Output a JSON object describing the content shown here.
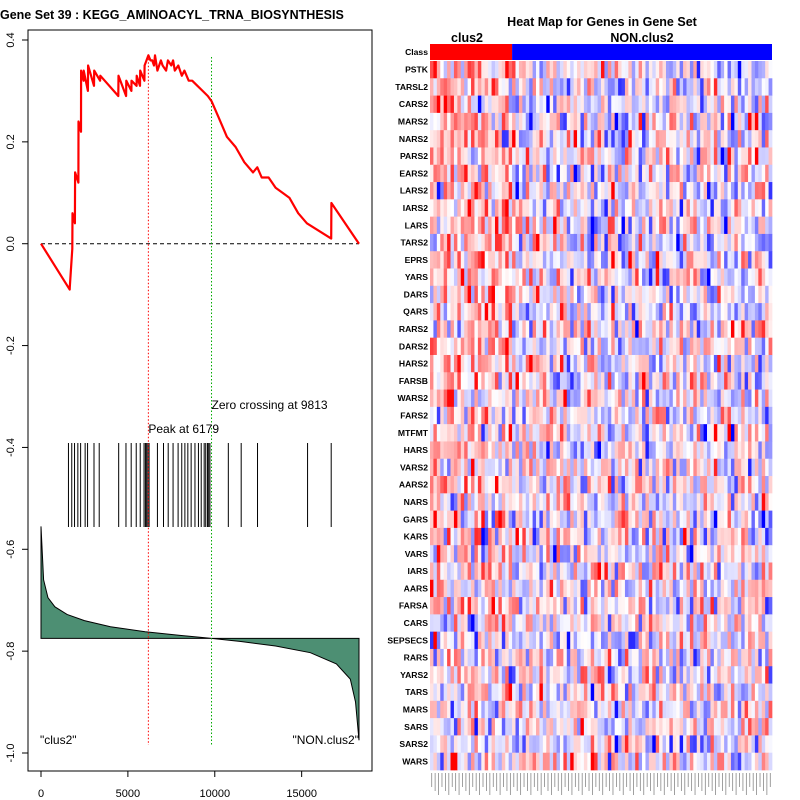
{
  "left_title": "Gene Set  39 : KEGG_AMINOACYL_TRNA_BIOSYNTHESIS",
  "right_title": "Heat Map for Genes in Gene Set",
  "class_label": "Class",
  "group1": "clus2",
  "group2": "NON.clus2",
  "peak_label": "Peak at 6179",
  "zero_label": "Zero crossing at 9813",
  "left_corner_label": "\"clus2\"",
  "right_corner_label": "\"NON.clus2\"",
  "colors": {
    "es_line": "#ff0000",
    "peak_line": "#ff0000",
    "zero_line": "#00aa00",
    "metric_fill": "#4d8f73",
    "group1": "#ff0000",
    "group2": "#0000ff"
  },
  "genes": [
    "PSTK",
    "TARSL2",
    "CARS2",
    "MARS2",
    "NARS2",
    "PARS2",
    "EARS2",
    "LARS2",
    "IARS2",
    "LARS",
    "TARS2",
    "EPRS",
    "YARS",
    "DARS",
    "QARS",
    "RARS2",
    "DARS2",
    "HARS2",
    "FARSB",
    "WARS2",
    "FARS2",
    "MTFMT",
    "HARS",
    "VARS2",
    "AARS2",
    "NARS",
    "GARS",
    "KARS",
    "VARS",
    "IARS",
    "AARS",
    "FARSA",
    "CARS",
    "SEPSECS",
    "RARS",
    "YARS2",
    "TARS",
    "MARS",
    "SARS",
    "SARS2",
    "WARS"
  ],
  "chart_data": [
    {
      "type": "line",
      "title": "Gene Set  39 : KEGG_AMINOACYL_TRNA_BIOSYNTHESIS",
      "xlabel": "",
      "ylabel": "",
      "xlim": [
        0,
        18300
      ],
      "ylim": [
        -1.0,
        0.4
      ],
      "xticks": [
        0,
        5000,
        10000,
        15000
      ],
      "yticks": [
        -1.0,
        -0.8,
        -0.6,
        -0.4,
        -0.2,
        0.0,
        0.2,
        0.4
      ],
      "peak": 6179,
      "zero_crossing": 9813,
      "running_es": {
        "x": [
          0,
          1650,
          1660,
          1800,
          1810,
          1950,
          1960,
          2150,
          2160,
          2300,
          2310,
          2450,
          2460,
          2700,
          2710,
          3050,
          3060,
          3400,
          3410,
          4450,
          4460,
          4900,
          4910,
          5200,
          5210,
          5500,
          5510,
          5700,
          5710,
          5950,
          5960,
          6179,
          6300,
          6400,
          6500,
          6560,
          6700,
          6900,
          7000,
          7200,
          7300,
          7500,
          7600,
          7700,
          7900,
          8100,
          8250,
          8500,
          8700,
          9000,
          9300,
          9600,
          9813,
          10200,
          10700,
          11200,
          11700,
          12200,
          12450,
          12700,
          13100,
          13500,
          13900,
          14300,
          14800,
          15300,
          16700,
          16710,
          18300
        ],
        "y": [
          0.0,
          -0.09,
          -0.085,
          -0.01,
          0.06,
          0.04,
          0.14,
          0.12,
          0.24,
          0.22,
          0.34,
          0.32,
          0.34,
          0.3,
          0.35,
          0.31,
          0.34,
          0.32,
          0.33,
          0.29,
          0.33,
          0.29,
          0.32,
          0.3,
          0.32,
          0.31,
          0.33,
          0.31,
          0.34,
          0.32,
          0.35,
          0.37,
          0.36,
          0.36,
          0.35,
          0.37,
          0.34,
          0.36,
          0.35,
          0.34,
          0.36,
          0.35,
          0.36,
          0.34,
          0.35,
          0.33,
          0.34,
          0.32,
          0.32,
          0.31,
          0.3,
          0.29,
          0.28,
          0.25,
          0.21,
          0.19,
          0.16,
          0.14,
          0.15,
          0.13,
          0.13,
          0.11,
          0.1,
          0.09,
          0.06,
          0.04,
          0.01,
          0.08,
          0.0
        ]
      },
      "hit_positions": [
        1580,
        1770,
        1930,
        2120,
        2280,
        2540,
        2680,
        3050,
        3350,
        4470,
        4890,
        5190,
        5480,
        5710,
        5930,
        6010,
        6080,
        6150,
        6220,
        6700,
        7050,
        7320,
        7600,
        7890,
        8100,
        8280,
        8450,
        8640,
        8860,
        9060,
        9220,
        9390,
        9480,
        9580,
        9650,
        9720,
        10780,
        11520,
        12460,
        15340,
        16700
      ],
      "ranked_metric": {
        "x": [
          0,
          150,
          400,
          800,
          1500,
          2500,
          4000,
          6000,
          8000,
          9813,
          11500,
          13500,
          15500,
          17000,
          17800,
          18100,
          18300
        ],
        "y": [
          -0.555,
          -0.66,
          -0.695,
          -0.713,
          -0.728,
          -0.74,
          -0.752,
          -0.762,
          -0.769,
          -0.775,
          -0.781,
          -0.79,
          -0.803,
          -0.825,
          -0.855,
          -0.9,
          -0.975
        ],
        "baseline": -0.775
      },
      "corner_labels": [
        "\"clus2\"",
        "\"NON.clus2\""
      ]
    },
    {
      "type": "heatmap",
      "title": "Heat Map for Genes in Gene Set",
      "rows": [
        "PSTK",
        "TARSL2",
        "CARS2",
        "MARS2",
        "NARS2",
        "PARS2",
        "EARS2",
        "LARS2",
        "IARS2",
        "LARS",
        "TARS2",
        "EPRS",
        "YARS",
        "DARS",
        "QARS",
        "RARS2",
        "DARS2",
        "HARS2",
        "FARSB",
        "WARS2",
        "FARS2",
        "MTFMT",
        "HARS",
        "VARS2",
        "AARS2",
        "NARS",
        "GARS",
        "KARS",
        "VARS",
        "IARS",
        "AARS",
        "FARSA",
        "CARS",
        "SEPSECS",
        "RARS",
        "YARS2",
        "TARS",
        "MARS",
        "SARS",
        "SARS2",
        "WARS"
      ],
      "n_samples": 100,
      "class_sizes": {
        "clus2": 24,
        "NON.clus2": 76
      },
      "class_label": "Class",
      "value_range": [
        -2.5,
        2.5
      ],
      "palette": {
        "low": "#0000ff",
        "mid": "#ffffff",
        "high": "#ff0000"
      }
    }
  ]
}
